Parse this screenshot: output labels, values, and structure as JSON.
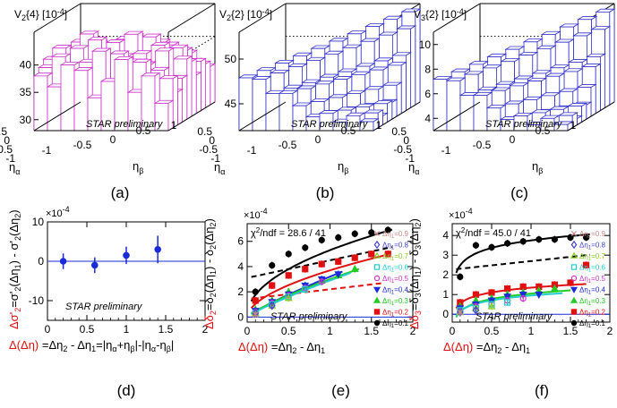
{
  "chart_data": [
    {
      "panel": "a",
      "type": "lego3d",
      "title": "V2{4} [10-4]",
      "title_main": "V",
      "title_sub": "2",
      "title_rest": "{4} [10",
      "title_sup": "-4",
      "title_end": "]",
      "zticks": [
        "40",
        "35",
        "30"
      ],
      "zrange": [
        28,
        46
      ],
      "xaxis": "ηα",
      "yaxis": "ηβ",
      "xticks": [
        "0.5",
        "0",
        "-0.5",
        "-1"
      ],
      "yticks": [
        "-1",
        "-0.5",
        "0",
        "0.5",
        "1"
      ],
      "color": "#cc33cc",
      "heights": [
        [
          38,
          36,
          40,
          39,
          34,
          37,
          41,
          35,
          38,
          33
        ],
        [
          39,
          41,
          37,
          40,
          42,
          36,
          38,
          40,
          35,
          37
        ],
        [
          40,
          38,
          42,
          37,
          39,
          41,
          36,
          39,
          38,
          34
        ],
        [
          37,
          39,
          38,
          43,
          36,
          40,
          39,
          37,
          41,
          36
        ],
        [
          41,
          36,
          40,
          38,
          42,
          37,
          40,
          38,
          36,
          39
        ],
        [
          36,
          40,
          37,
          41,
          38,
          43,
          39,
          41,
          37,
          38
        ],
        [
          39,
          37,
          41,
          36,
          40,
          38,
          42,
          36,
          40,
          35
        ],
        [
          38,
          42,
          36,
          39,
          37,
          41,
          38,
          40,
          39,
          37
        ],
        [
          40,
          37,
          39,
          38,
          41,
          36,
          40,
          37,
          38,
          36
        ],
        [
          37,
          39,
          38,
          40,
          36,
          39,
          37,
          38,
          36,
          35
        ]
      ],
      "label": "STAR preliminary",
      "caption": "(a)"
    },
    {
      "panel": "b",
      "type": "lego3d",
      "title": "V2{2} [10-4]",
      "title_main": "V",
      "title_sub": "2",
      "title_rest": "{2} [10",
      "title_sup": "-4",
      "title_end": "]",
      "zticks": [
        "50",
        "45"
      ],
      "zrange": [
        42,
        53
      ],
      "xaxis": "ηα",
      "yaxis": "ηβ",
      "xticks": [
        "0.5",
        "0",
        "-0.5",
        "-1"
      ],
      "yticks": [
        "-1",
        "-0.5",
        "0",
        "0.5",
        "1"
      ],
      "color": "#3333cc",
      "shape": "ridge",
      "peak": 53,
      "base": 43,
      "label": "STAR preliminary",
      "caption": "(b)"
    },
    {
      "panel": "c",
      "type": "lego3d",
      "title": "V3{2} [10-4]",
      "title_main": "V",
      "title_sub": "3",
      "title_rest": "{2} [10",
      "title_sup": "-4",
      "title_end": "]",
      "zticks": [
        "10",
        "8",
        "6",
        "4"
      ],
      "zrange": [
        3,
        11
      ],
      "xaxis": "ηα",
      "yaxis": "ηβ",
      "xticks": [
        "0.5",
        "0",
        "-0.5",
        "-1"
      ],
      "yticks": [
        "-1",
        "-0.5",
        "0",
        "0.5",
        "1"
      ],
      "color": "#3333cc",
      "shape": "ridge",
      "peak": 11,
      "base": 3.5,
      "label": "STAR preliminary",
      "caption": "(c)"
    },
    {
      "panel": "d",
      "type": "scatter",
      "exponent": "×10-4",
      "xlim": [
        0,
        2
      ],
      "ylim": [
        -15,
        10
      ],
      "xticks": [
        "0",
        "0.5",
        "1",
        "1.5",
        "2"
      ],
      "yticks": [
        "10",
        "0",
        "-10"
      ],
      "ylabel": "Δσ'2=σ'2(Δη1) - σ'2(Δη2)",
      "xlabel": "Δ(Δη) =Δη2 - Δη1=|ηα+ηβ|-|ηα-ηβ|",
      "points": [
        {
          "x": 0.2,
          "y": 0,
          "err": 2
        },
        {
          "x": 0.6,
          "y": -1,
          "err": 2
        },
        {
          "x": 1.0,
          "y": 1.5,
          "err": 2.2
        },
        {
          "x": 1.4,
          "y": 3,
          "err": 3.5
        }
      ],
      "color": "#1a2bd8",
      "label": "STAR preliminary",
      "caption": "(d)"
    },
    {
      "panel": "e",
      "type": "scatter-fit",
      "exponent": "×10-4",
      "xlim": [
        0,
        2
      ],
      "ylim": [
        -0.4,
        7.4
      ],
      "xticks": [
        "0",
        "0.5",
        "1",
        "1.5",
        "2"
      ],
      "yticks": [
        "0",
        "2",
        "4",
        "6"
      ],
      "ylabel": "Δδ2=δ2(Δη1) - δ2(Δη2)",
      "xlabel": "Δ(Δη) =Δη2 - Δη1",
      "chi2": "χ2/ndf = 28.6 / 41",
      "legend": [
        "Δη1=0.9",
        "Δη1=0.8",
        "Δη1=0.7",
        "Δη1=0.6",
        "Δη1=0.5",
        "Δη1=0.4",
        "Δη1=0.3",
        "Δη1=0.2",
        "Δη1=0.1"
      ],
      "series": [
        {
          "name": "Δη1=0.1",
          "color": "#000000",
          "marker": "circle",
          "filled": true,
          "points": [
            [
              0.1,
              2.0
            ],
            [
              0.3,
              4.1
            ],
            [
              0.5,
              5.0
            ],
            [
              0.7,
              5.5
            ],
            [
              0.9,
              6.1
            ],
            [
              1.1,
              6.3
            ],
            [
              1.3,
              6.6
            ],
            [
              1.5,
              6.7
            ],
            [
              1.7,
              6.9
            ]
          ]
        },
        {
          "name": "Δη1=0.2",
          "color": "#e01010",
          "marker": "square",
          "filled": true,
          "points": [
            [
              0.1,
              1.3
            ],
            [
              0.3,
              2.5
            ],
            [
              0.5,
              3.3
            ],
            [
              0.7,
              3.8
            ],
            [
              0.9,
              4.2
            ],
            [
              1.1,
              4.4
            ],
            [
              1.3,
              4.7
            ],
            [
              1.5,
              5.0
            ],
            [
              1.7,
              5.0
            ]
          ]
        },
        {
          "name": "Δη1=0.3",
          "color": "#22cc22",
          "marker": "triangle",
          "filled": true,
          "points": [
            [
              0.1,
              0.6
            ],
            [
              0.3,
              1.3
            ],
            [
              0.5,
              2.0
            ],
            [
              0.7,
              2.5
            ],
            [
              0.9,
              2.9
            ],
            [
              1.1,
              3.3
            ],
            [
              1.3,
              3.8
            ]
          ]
        },
        {
          "name": "Δη1=0.4",
          "color": "#1a2bd8",
          "marker": "triangle-down",
          "filled": true,
          "points": [
            [
              0.1,
              0.5
            ],
            [
              0.3,
              1.2
            ],
            [
              0.5,
              1.8
            ],
            [
              0.7,
              2.5
            ],
            [
              0.9,
              3.0
            ],
            [
              1.1,
              3.4
            ]
          ]
        },
        {
          "name": "Δη1=0.5",
          "color": "#cc33cc",
          "marker": "circle",
          "filled": false,
          "points": [
            [
              0.1,
              0.4
            ],
            [
              0.3,
              1.1
            ],
            [
              0.5,
              1.7
            ],
            [
              0.7,
              2.3
            ],
            [
              0.9,
              2.8
            ]
          ]
        },
        {
          "name": "Δη1=0.6",
          "color": "#22cccc",
          "marker": "square",
          "filled": false,
          "points": [
            [
              0.1,
              0.3
            ],
            [
              0.3,
              1.0
            ],
            [
              0.5,
              1.6
            ],
            [
              0.7,
              2.2
            ]
          ]
        },
        {
          "name": "Δη1=0.7",
          "color": "#88cc22",
          "marker": "triangle",
          "filled": false,
          "points": [
            [
              0.1,
              0.3
            ],
            [
              0.3,
              0.9
            ],
            [
              0.5,
              1.5
            ]
          ]
        },
        {
          "name": "Δη1=0.8",
          "color": "#4444cc",
          "marker": "diamond",
          "filled": false,
          "points": [
            [
              0.1,
              0.3
            ],
            [
              0.3,
              0.9
            ]
          ]
        },
        {
          "name": "Δη1=0.9",
          "color": "#cc8888",
          "marker": "cross",
          "filled": false,
          "points": [
            [
              0.1,
              0.2
            ]
          ]
        }
      ],
      "fits": [
        {
          "color": "#000000",
          "style": "solid",
          "fn": "pow",
          "a": 5.3,
          "b": 0.48,
          "c": 0.0
        },
        {
          "color": "#000000",
          "style": "dashed",
          "fn": "lin",
          "a": 4.5,
          "b": 1.55,
          "c": 0.0
        },
        {
          "color": "#e01010",
          "style": "solid",
          "fn": "pow",
          "a": 3.7,
          "b": 0.55,
          "c": 0.0
        },
        {
          "color": "#e01010",
          "style": "dashed",
          "fn": "lin",
          "a": 2.2,
          "b": 1.75,
          "c": 0.0
        },
        {
          "color": "#1a2bd8",
          "style": "solid",
          "fn": "pow",
          "a": 3.2,
          "b": 0.85,
          "c": 0.0
        },
        {
          "color": "#22cc22",
          "style": "solid",
          "fn": "pow",
          "a": 3.0,
          "b": 0.8,
          "c": 0.0
        },
        {
          "color": "#22cccc",
          "style": "solid",
          "fn": "pow",
          "a": 2.9,
          "b": 0.85,
          "c": 0.0
        }
      ],
      "fit_ranges": [
        [
          0.05,
          1.75
        ],
        [
          0.05,
          1.75
        ],
        [
          0.05,
          1.65
        ],
        [
          0.05,
          1.65
        ],
        [
          0.05,
          1.15
        ],
        [
          0.05,
          1.35
        ],
        [
          0.05,
          1.25
        ]
      ],
      "label": "STAR preliminary",
      "caption": "(e)"
    },
    {
      "panel": "f",
      "type": "scatter-fit",
      "exponent": "×10-4",
      "xlim": [
        0,
        2
      ],
      "ylim": [
        -0.4,
        4.6
      ],
      "xticks": [
        "0",
        "0.5",
        "1",
        "1.5",
        "2"
      ],
      "yticks": [
        "0",
        "1",
        "2",
        "3",
        "4"
      ],
      "ylabel": "Δδ3=δ3(Δη1) - δ3(Δη2)",
      "xlabel": "Δ(Δη) =Δη2 - Δη1",
      "chi2": "χ2/ndf = 45.0 / 41",
      "legend": [
        "Δη1=0.9",
        "Δη1=0.8",
        "Δη1=0.7",
        "Δη1=0.6",
        "Δη1=0.5",
        "Δη1=0.4",
        "Δη1=0.3",
        "Δη1=0.2",
        "Δη1=0.1"
      ],
      "series": [
        {
          "name": "Δη1=0.1",
          "color": "#000000",
          "marker": "circle",
          "filled": true,
          "points": [
            [
              0.1,
              1.9
            ],
            [
              0.3,
              3.5
            ],
            [
              0.5,
              3.4
            ],
            [
              0.7,
              3.6
            ],
            [
              0.9,
              3.7
            ],
            [
              1.1,
              3.8
            ],
            [
              1.3,
              3.8
            ],
            [
              1.5,
              3.9
            ],
            [
              1.7,
              3.9
            ]
          ]
        },
        {
          "name": "Δη1=0.2",
          "color": "#e01010",
          "marker": "square",
          "filled": true,
          "points": [
            [
              0.1,
              0.6
            ],
            [
              0.3,
              1.0
            ],
            [
              0.5,
              1.1
            ],
            [
              0.7,
              1.3
            ],
            [
              0.9,
              1.4
            ],
            [
              1.1,
              1.4
            ],
            [
              1.3,
              1.5
            ],
            [
              1.5,
              1.6
            ],
            [
              1.7,
              2.5
            ]
          ]
        },
        {
          "name": "Δη1=0.3",
          "color": "#22cc22",
          "marker": "triangle",
          "filled": true,
          "points": [
            [
              0.1,
              0.4
            ],
            [
              0.3,
              0.7
            ],
            [
              0.5,
              0.8
            ],
            [
              0.7,
              1.0
            ],
            [
              0.9,
              1.1
            ],
            [
              1.1,
              1.2
            ],
            [
              1.3,
              1.3
            ]
          ]
        },
        {
          "name": "Δη1=0.4",
          "color": "#1a2bd8",
          "marker": "triangle-down",
          "filled": true,
          "points": [
            [
              0.1,
              0.3
            ],
            [
              0.3,
              0.5
            ],
            [
              0.5,
              0.7
            ],
            [
              0.7,
              0.9
            ],
            [
              0.9,
              1.0
            ],
            [
              1.1,
              1.0
            ]
          ]
        },
        {
          "name": "Δη1=0.5",
          "color": "#cc33cc",
          "marker": "circle",
          "filled": false,
          "points": [
            [
              0.1,
              0.2
            ],
            [
              0.3,
              0.4
            ],
            [
              0.5,
              0.5
            ],
            [
              0.7,
              0.7
            ],
            [
              0.9,
              0.8
            ]
          ]
        },
        {
          "name": "Δη1=0.6",
          "color": "#22cccc",
          "marker": "square",
          "filled": false,
          "points": [
            [
              0.1,
              0.2
            ],
            [
              0.3,
              0.3
            ],
            [
              0.5,
              0.5
            ],
            [
              0.7,
              0.6
            ]
          ]
        },
        {
          "name": "Δη1=0.7",
          "color": "#88cc22",
          "marker": "triangle",
          "filled": false,
          "points": [
            [
              0.1,
              0.1
            ],
            [
              0.3,
              0.3
            ],
            [
              0.5,
              0.4
            ]
          ]
        },
        {
          "name": "Δη1=0.8",
          "color": "#4444cc",
          "marker": "diamond",
          "filled": false,
          "points": [
            [
              0.1,
              0.1
            ],
            [
              0.3,
              0.2
            ]
          ]
        },
        {
          "name": "Δη1=0.9",
          "color": "#cc8888",
          "marker": "cross",
          "filled": false,
          "points": [
            [
              0.1,
              0.1
            ]
          ]
        }
      ],
      "fits": [
        {
          "color": "#000000",
          "style": "solid",
          "fn": "log",
          "a": 3.75,
          "b": 0.55,
          "c": 0.0
        },
        {
          "color": "#000000",
          "style": "dashed",
          "fn": "lin",
          "a": 2.7,
          "b": 0.8,
          "c": 0.0
        },
        {
          "color": "#e01010",
          "style": "solid",
          "fn": "log",
          "a": 1.35,
          "b": 0.35,
          "c": 0.0
        },
        {
          "color": "#22cc22",
          "style": "solid",
          "fn": "log",
          "a": 1.05,
          "b": 0.4,
          "c": 0.0
        },
        {
          "color": "#22cccc",
          "style": "solid",
          "fn": "log",
          "a": 0.95,
          "b": 0.35,
          "c": 0.0
        }
      ],
      "fit_ranges": [
        [
          0.05,
          1.75
        ],
        [
          0.05,
          1.75
        ],
        [
          0.05,
          1.7
        ],
        [
          0.05,
          1.5
        ],
        [
          0.05,
          1.4
        ]
      ],
      "label": "STAR preliminary",
      "caption": "(f)"
    }
  ]
}
